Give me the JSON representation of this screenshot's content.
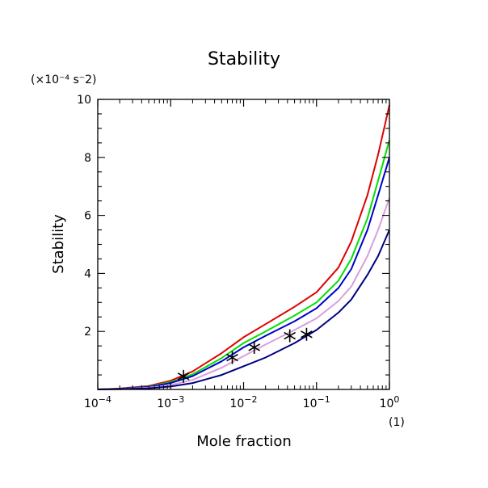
{
  "chart_data": {
    "type": "line",
    "title": "Stability",
    "xlabel": "Mole fraction",
    "ylabel": "Stability",
    "x_unit": "(1)",
    "y_unit": "(×10⁻⁴ s⁻2)",
    "x_scale": "log",
    "xlim": [
      0.0001,
      1
    ],
    "ylim": [
      0,
      10
    ],
    "x_ticks": [
      {
        "value": 0.0001,
        "base": "10",
        "exp": "−4"
      },
      {
        "value": 0.001,
        "base": "10",
        "exp": "−3"
      },
      {
        "value": 0.01,
        "base": "10",
        "exp": "−2"
      },
      {
        "value": 0.1,
        "base": "10",
        "exp": "−1"
      },
      {
        "value": 1,
        "base": "10",
        "exp": "0"
      }
    ],
    "y_ticks": [
      "2",
      "4",
      "6",
      "8",
      "10"
    ],
    "grid": false,
    "series": [
      {
        "color": "#e00000",
        "x": [
          0.0001,
          0.0002,
          0.0005,
          0.001,
          0.002,
          0.005,
          0.01,
          0.02,
          0.05,
          0.1,
          0.2,
          0.3,
          0.5,
          0.7,
          1
        ],
        "y": [
          0.0,
          0.03,
          0.12,
          0.3,
          0.62,
          1.25,
          1.8,
          2.25,
          2.85,
          3.35,
          4.2,
          5.1,
          6.7,
          8.1,
          9.8
        ]
      },
      {
        "color": "#00e000",
        "x": [
          0.0001,
          0.0002,
          0.0005,
          0.001,
          0.002,
          0.005,
          0.01,
          0.02,
          0.05,
          0.1,
          0.2,
          0.3,
          0.5,
          0.7,
          1
        ],
        "y": [
          0.0,
          0.02,
          0.1,
          0.25,
          0.52,
          1.08,
          1.6,
          2.0,
          2.55,
          3.0,
          3.75,
          4.5,
          5.9,
          7.2,
          8.6
        ]
      },
      {
        "color": "#0000cc",
        "x": [
          0.0001,
          0.0002,
          0.0005,
          0.001,
          0.002,
          0.005,
          0.01,
          0.02,
          0.05,
          0.1,
          0.2,
          0.3,
          0.5,
          0.7,
          1
        ],
        "y": [
          0.0,
          0.02,
          0.09,
          0.22,
          0.46,
          0.97,
          1.45,
          1.85,
          2.35,
          2.8,
          3.5,
          4.15,
          5.5,
          6.7,
          8.0
        ]
      },
      {
        "color": "#d8a0d8",
        "x": [
          0.0001,
          0.0002,
          0.0005,
          0.001,
          0.002,
          0.005,
          0.01,
          0.02,
          0.05,
          0.1,
          0.2,
          0.3,
          0.5,
          0.7,
          1
        ],
        "y": [
          0.0,
          0.01,
          0.06,
          0.15,
          0.33,
          0.75,
          1.15,
          1.55,
          2.05,
          2.45,
          3.05,
          3.55,
          4.6,
          5.5,
          6.6
        ]
      },
      {
        "color": "#000080",
        "x": [
          0.0001,
          0.0002,
          0.0005,
          0.001,
          0.002,
          0.005,
          0.01,
          0.02,
          0.05,
          0.1,
          0.2,
          0.3,
          0.5,
          0.7,
          1
        ],
        "y": [
          0.0,
          0.01,
          0.04,
          0.1,
          0.22,
          0.5,
          0.8,
          1.1,
          1.6,
          2.05,
          2.65,
          3.1,
          3.95,
          4.6,
          5.5
        ]
      }
    ],
    "markers": {
      "symbol": "asterisk",
      "x": [
        0.0015,
        0.007,
        0.014,
        0.043,
        0.073
      ],
      "y": [
        0.45,
        1.1,
        1.45,
        1.85,
        1.9
      ]
    }
  }
}
